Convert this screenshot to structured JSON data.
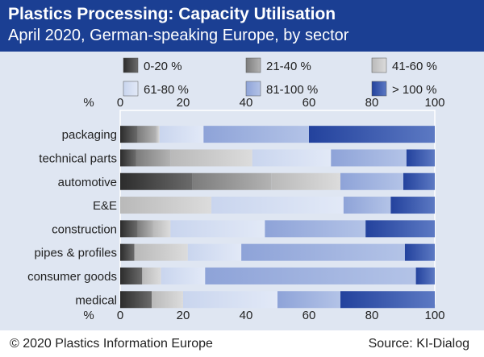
{
  "header": {
    "title": "Plastics Processing: Capacity Utilisation",
    "subtitle": "April 2020, German-speaking Europe, by sector"
  },
  "footer": {
    "copyright": "© 2020 Plastics Information Europe",
    "source": "Source: KI-Dialog"
  },
  "colors": {
    "header_bg": "#1b3f93",
    "plot_bg": "#dfe6f2"
  },
  "chart_data": {
    "type": "bar",
    "orientation": "horizontal",
    "stacked": true,
    "axis_unit_label": "%",
    "xlim": [
      0,
      100
    ],
    "xticks": [
      0,
      20,
      40,
      60,
      80,
      100
    ],
    "grid": false,
    "legend_position": "top",
    "categories": [
      "packaging",
      "technical parts",
      "automotive",
      "E&E",
      "construction",
      "pipes & profiles",
      "consumer goods",
      "medical"
    ],
    "series": [
      {
        "name": "0-20 %",
        "color_dark": "#2c2c2c",
        "color_light": "#6b6b6b",
        "values": [
          5.5,
          5,
          23,
          0,
          5.5,
          4.5,
          7,
          10
        ]
      },
      {
        "name": "21-40 %",
        "color_dark": "#7c7c7c",
        "color_light": "#b3b3b3",
        "values": [
          6,
          11,
          25,
          0,
          5,
          0,
          0,
          0
        ]
      },
      {
        "name": "41-60 %",
        "color_dark": "#b9b9b9",
        "color_light": "#dcdcdc",
        "values": [
          1,
          26,
          22,
          29,
          5.5,
          17,
          6,
          10
        ]
      },
      {
        "name": "61-80 %",
        "color_dark": "#c9d5ee",
        "color_light": "#e2e9f7",
        "values": [
          14,
          25,
          0,
          42,
          30,
          17,
          14,
          30
        ]
      },
      {
        "name": "81-100 %",
        "color_dark": "#8ea3d8",
        "color_light": "#b3c3e7",
        "values": [
          33.5,
          24,
          20,
          15,
          32,
          52,
          67,
          20
        ]
      },
      {
        "name": "> 100 %",
        "color_dark": "#23429d",
        "color_light": "#5c79c3",
        "values": [
          40,
          9,
          10,
          14,
          22,
          9.5,
          6,
          30
        ]
      }
    ]
  }
}
